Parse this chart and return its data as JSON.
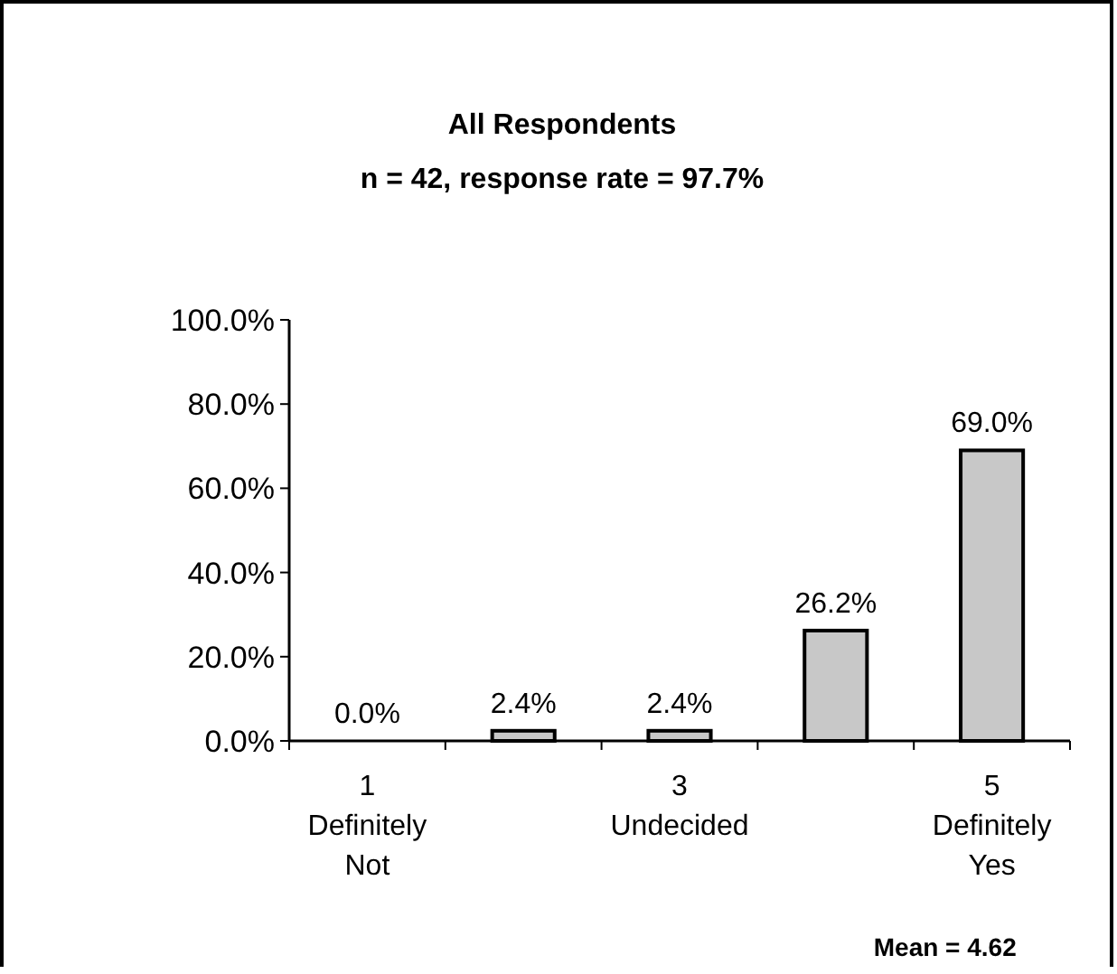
{
  "chart_data": {
    "type": "bar",
    "title": "All Respondents",
    "subtitle": "n = 42, response rate = 97.7%",
    "categories": [
      "1\nDefinitely\nNot",
      null,
      "3\nUndecided",
      null,
      "5\nDefinitely\nYes"
    ],
    "values": [
      0.0,
      2.4,
      2.4,
      26.2,
      69.0
    ],
    "value_labels": [
      "0.0%",
      "2.4%",
      "2.4%",
      "26.2%",
      "69.0%"
    ],
    "color": "#c8c8c8",
    "ylim": [
      0,
      100
    ],
    "yticks": [
      {
        "value": 0,
        "label": "0.0%"
      },
      {
        "value": 20,
        "label": "20.0%"
      },
      {
        "value": 40,
        "label": "40.0%"
      },
      {
        "value": 60,
        "label": "60.0%"
      },
      {
        "value": 80,
        "label": "80.0%"
      },
      {
        "value": 100,
        "label": "100.0%"
      }
    ],
    "grid": false,
    "annotations": [
      "Mean = 4.62"
    ]
  }
}
